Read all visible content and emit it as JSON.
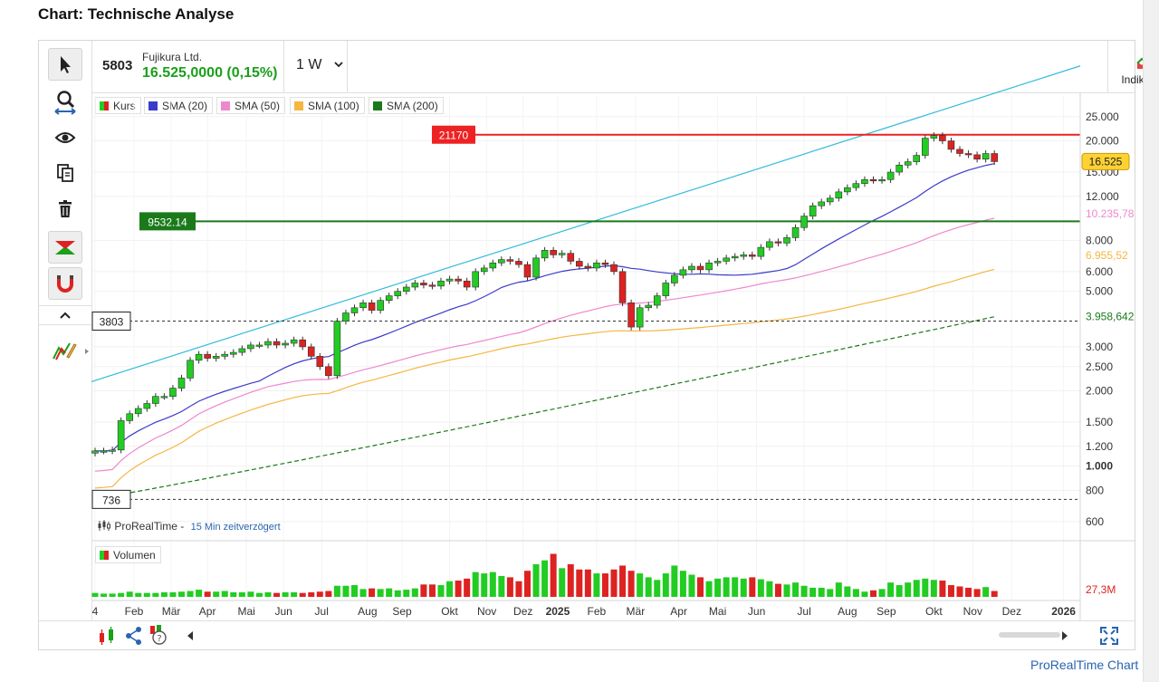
{
  "page": {
    "title": "Chart: Technische Analyse",
    "footer_link": "ProRealTime Chart"
  },
  "instrument": {
    "code": "5803",
    "name": "Fujikura Ltd.",
    "price_change": "16.525,0000 (0,15%)",
    "interval": "1 W"
  },
  "toolbar": {
    "tools": [
      "pointer-icon",
      "zoom-icon",
      "eye-icon",
      "copy-icon",
      "trash-icon",
      "snap-icon",
      "magnet-icon",
      "collapse-icon",
      "drawing-icon"
    ],
    "indicators_label": "Indikatoren"
  },
  "legend": [
    {
      "label": "Kurs",
      "color": "#22cc22",
      "color2": "#dd2222"
    },
    {
      "label": "SMA (20)",
      "color": "#3b3bcc"
    },
    {
      "label": "SMA (50)",
      "color": "#ee88cc"
    },
    {
      "label": "SMA (100)",
      "color": "#f5b642"
    },
    {
      "label": "SMA (200)",
      "color": "#1a7a1a"
    }
  ],
  "colors": {
    "up": "#22cc22",
    "down": "#dd2222",
    "channel": "#33bbdd",
    "resistance": "#ee2222",
    "support": "#1a7a1a"
  },
  "source": {
    "name": "ProRealTime -",
    "delay": "15 Min zeitverzögert"
  },
  "volume_label": "Volumen",
  "chart_data": {
    "type": "candlestick",
    "scale": "log",
    "x_labels": [
      "4",
      "Feb",
      "Mär",
      "Apr",
      "Mai",
      "Jun",
      "Jul",
      "Aug",
      "Sep",
      "Okt",
      "Nov",
      "Dez",
      "2025",
      "Feb",
      "Mär",
      "Apr",
      "Mai",
      "Jun",
      "Jul",
      "Aug",
      "Sep",
      "Okt",
      "Nov",
      "Dez",
      "2026"
    ],
    "y_ticks": [
      {
        "value": 25000,
        "label": "25.000"
      },
      {
        "value": 20000,
        "label": "20.000"
      },
      {
        "value": 15000,
        "label": "15.000"
      },
      {
        "value": 12000,
        "label": "12.000"
      },
      {
        "value": 8000,
        "label": "8.000"
      },
      {
        "value": 6000,
        "label": "6.000"
      },
      {
        "value": 5000,
        "label": "5.000"
      },
      {
        "value": 3000,
        "label": "3.000"
      },
      {
        "value": 2500,
        "label": "2.500"
      },
      {
        "value": 2000,
        "label": "2.000"
      },
      {
        "value": 1500,
        "label": "1.500"
      },
      {
        "value": 1200,
        "label": "1.200"
      },
      {
        "value": 1000,
        "label": "1.000"
      },
      {
        "value": 800,
        "label": "800"
      },
      {
        "value": 600,
        "label": "600"
      }
    ],
    "y_range": [
      520,
      29000
    ],
    "levels": [
      {
        "value": 21170,
        "label": "21170",
        "style": "resistance"
      },
      {
        "value": 9532.14,
        "label": "9532.14",
        "style": "support"
      },
      {
        "value": 3803,
        "label": "3803",
        "style": "dashed"
      },
      {
        "value": 736,
        "label": "736",
        "style": "dashed"
      }
    ],
    "value_badges": [
      {
        "value": 16525,
        "label": "16.525",
        "style": "price"
      },
      {
        "value": 10235.78,
        "label": "10.235,78",
        "color": "#ee88cc"
      },
      {
        "value": 6955.52,
        "label": "6.955,52",
        "color": "#f5b642"
      },
      {
        "value": 3958.642,
        "label": "3.958,642",
        "color": "#1a7a1a"
      }
    ],
    "volume_badge": "27,3M",
    "channel": [
      {
        "week": 0,
        "value": 2200
      },
      {
        "week": 100,
        "value": 28000
      }
    ],
    "closes": [
      1150,
      1150,
      1160,
      1520,
      1620,
      1700,
      1780,
      1900,
      1900,
      2050,
      2250,
      2650,
      2800,
      2700,
      2750,
      2800,
      2850,
      2950,
      3050,
      3050,
      3150,
      3050,
      3100,
      3200,
      3000,
      2750,
      2500,
      2300,
      3800,
      4100,
      4300,
      4500,
      4200,
      4600,
      4800,
      5000,
      5200,
      5400,
      5300,
      5250,
      5500,
      5600,
      5500,
      5200,
      6000,
      6200,
      6500,
      6700,
      6600,
      6400,
      5700,
      6800,
      7300,
      7000,
      7100,
      6600,
      6300,
      6200,
      6500,
      6400,
      6000,
      4500,
      3600,
      4300,
      4400,
      4800,
      5400,
      5800,
      6100,
      6300,
      6100,
      6500,
      6600,
      6800,
      6900,
      7000,
      6900,
      7500,
      7900,
      7800,
      8200,
      9000,
      10000,
      11000,
      11400,
      11800,
      12500,
      13000,
      13500,
      14000,
      13900,
      14000,
      15000,
      16000,
      16500,
      17500,
      20500,
      21000,
      20000,
      18500,
      17800,
      17600,
      16900,
      17800,
      16525
    ],
    "volume_max": 75,
    "volumes": [
      6,
      5,
      5,
      6,
      8,
      6,
      6,
      6,
      7,
      7,
      8,
      9,
      11,
      8,
      8,
      9,
      7,
      7,
      8,
      6,
      7,
      6,
      7,
      7,
      6,
      7,
      8,
      9,
      17,
      17,
      18,
      12,
      13,
      12,
      13,
      10,
      11,
      13,
      19,
      19,
      18,
      24,
      25,
      28,
      38,
      36,
      38,
      32,
      30,
      24,
      40,
      50,
      56,
      66,
      44,
      50,
      42,
      42,
      36,
      36,
      42,
      48,
      40,
      36,
      30,
      26,
      36,
      48,
      40,
      34,
      30,
      24,
      28,
      30,
      30,
      28,
      30,
      27,
      24,
      20,
      19,
      22,
      17,
      14,
      14,
      12,
      22,
      16,
      12,
      8,
      10,
      12,
      22,
      18,
      22,
      26,
      28,
      26,
      25,
      18,
      16,
      14,
      12,
      15,
      9
    ]
  }
}
